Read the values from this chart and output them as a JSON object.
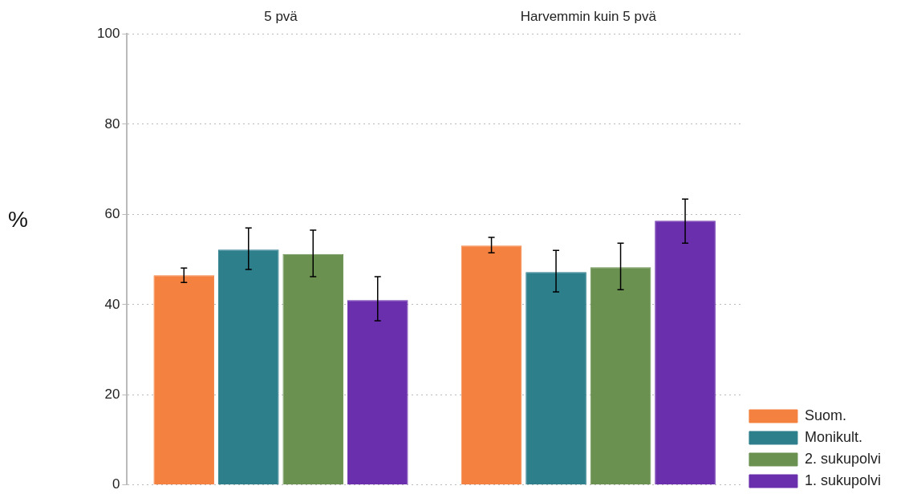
{
  "chart_data": {
    "type": "bar",
    "ylabel": "%",
    "categories": [
      "5 pvä",
      "Harvemmin kuin 5 pvä"
    ],
    "series": [
      {
        "name": "Suom.",
        "color": "#f4813f",
        "values": [
          46.5,
          53.1
        ],
        "errors": [
          [
            44.9,
            48.1
          ],
          [
            51.5,
            54.9
          ]
        ]
      },
      {
        "name": "Monikult.",
        "color": "#2e7f8c",
        "values": [
          52.2,
          47.2
        ],
        "errors": [
          [
            47.8,
            57.0
          ],
          [
            42.8,
            52.0
          ]
        ]
      },
      {
        "name": "2. sukupolvi",
        "color": "#6a9150",
        "values": [
          51.2,
          48.3
        ],
        "errors": [
          [
            46.2,
            56.5
          ],
          [
            43.3,
            53.6
          ]
        ]
      },
      {
        "name": "1. sukupolvi",
        "color": "#6a2fad",
        "values": [
          41.0,
          58.6
        ],
        "errors": [
          [
            36.4,
            46.2
          ],
          [
            53.6,
            63.4
          ]
        ]
      }
    ],
    "ylim": [
      0,
      100
    ],
    "yticks": [
      0,
      20,
      40,
      60,
      80,
      100
    ],
    "grid": "y",
    "legend": "bottom right"
  }
}
